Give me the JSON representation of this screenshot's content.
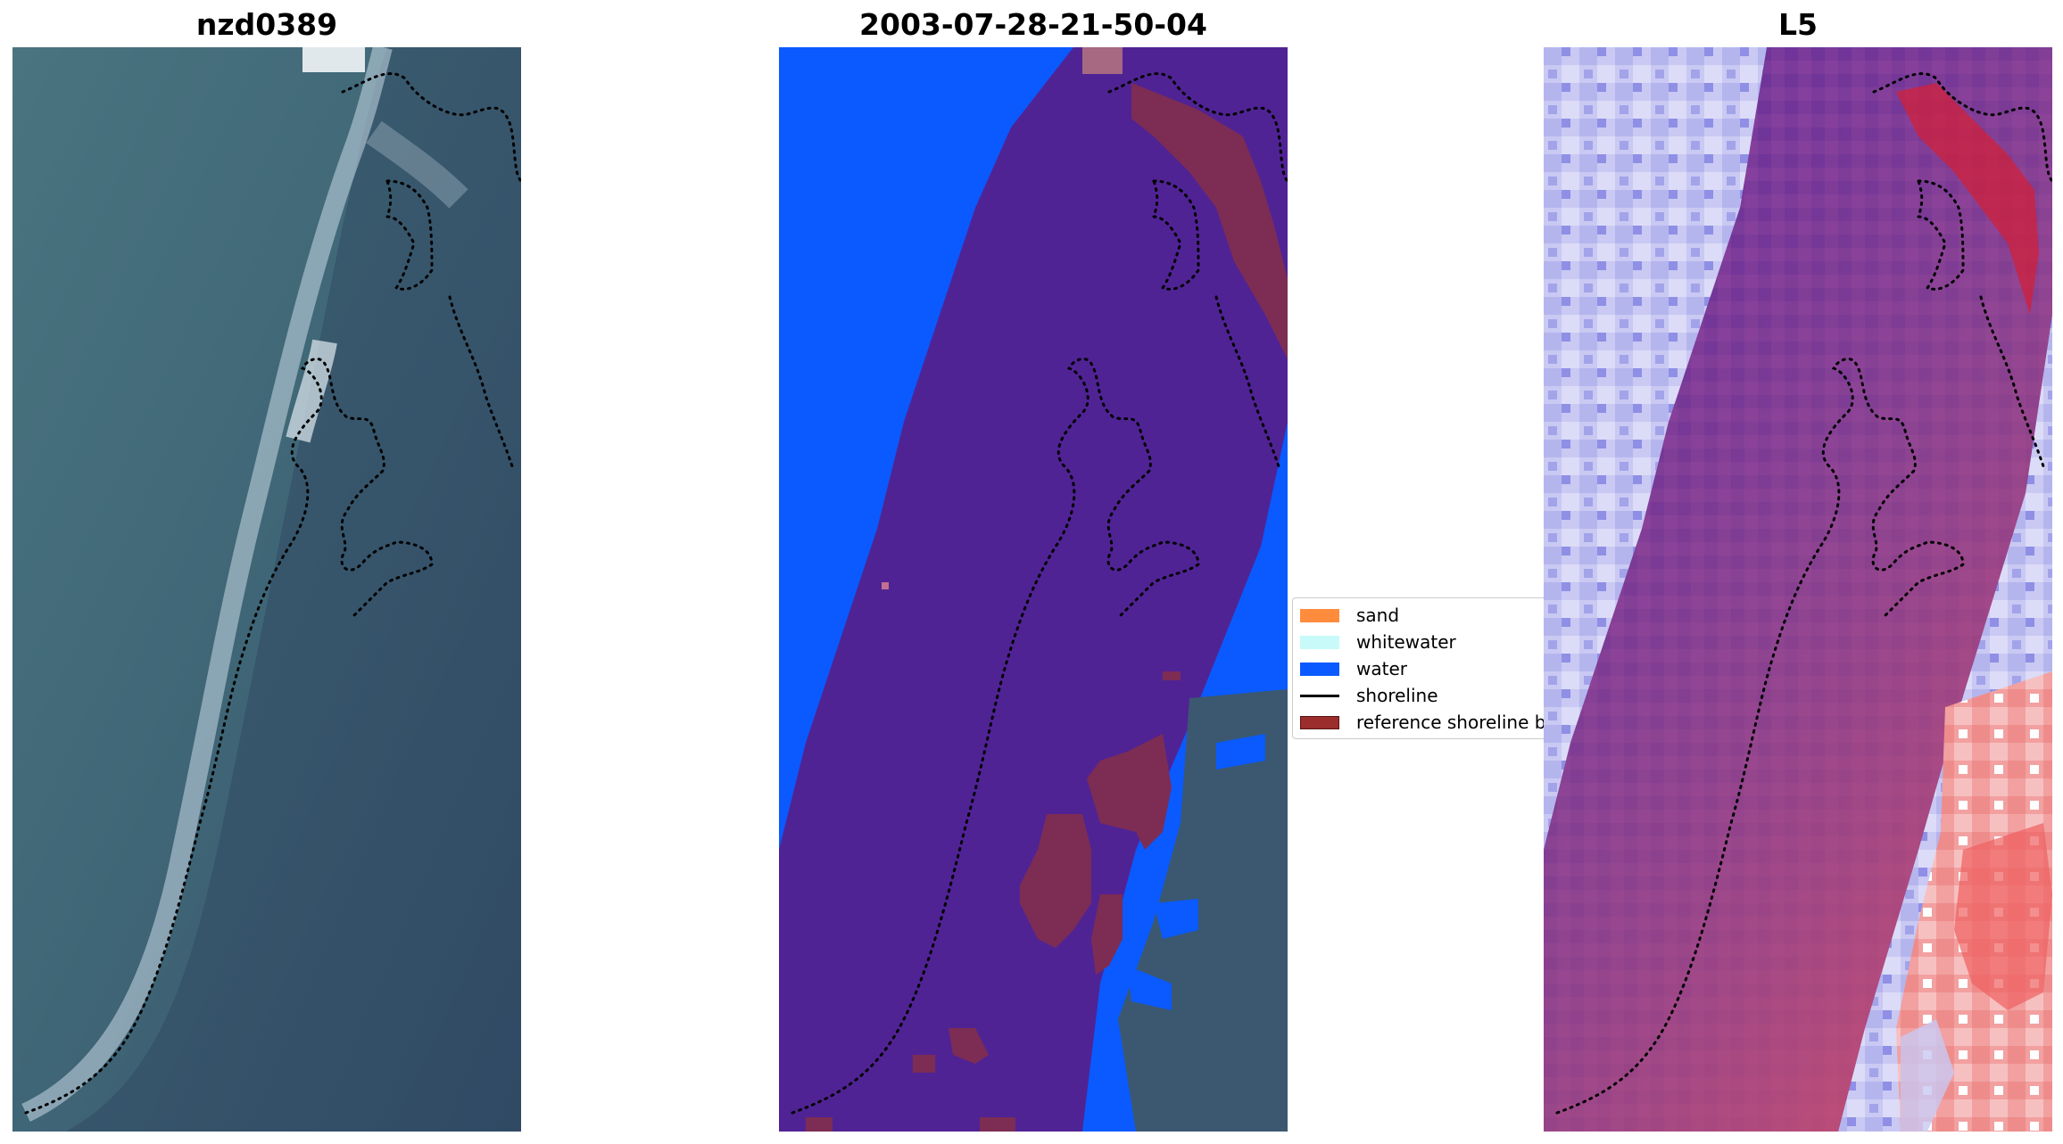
{
  "panels": [
    {
      "title": "nzd0389"
    },
    {
      "title": "2003-07-28-21-50-04"
    },
    {
      "title": "L5"
    }
  ],
  "legend": {
    "items": [
      {
        "label": "sand",
        "color": "#ff8c3c",
        "kind": "patch"
      },
      {
        "label": "whitewater",
        "color": "#c8fafa",
        "kind": "patch"
      },
      {
        "label": "water",
        "color": "#0a5aff",
        "kind": "patch"
      },
      {
        "label": "shoreline",
        "color": "#000000",
        "kind": "line"
      },
      {
        "label": "reference shoreline buffer",
        "color": "#9b2d2d",
        "kind": "patch"
      }
    ]
  },
  "colors": {
    "classified_background": "#502394",
    "water": "#0a5aff",
    "reference_buffer": "#9b2d2d",
    "rgb_water": "#3f5e72",
    "index_low": "#3b3bdc",
    "index_high": "#e03030"
  }
}
